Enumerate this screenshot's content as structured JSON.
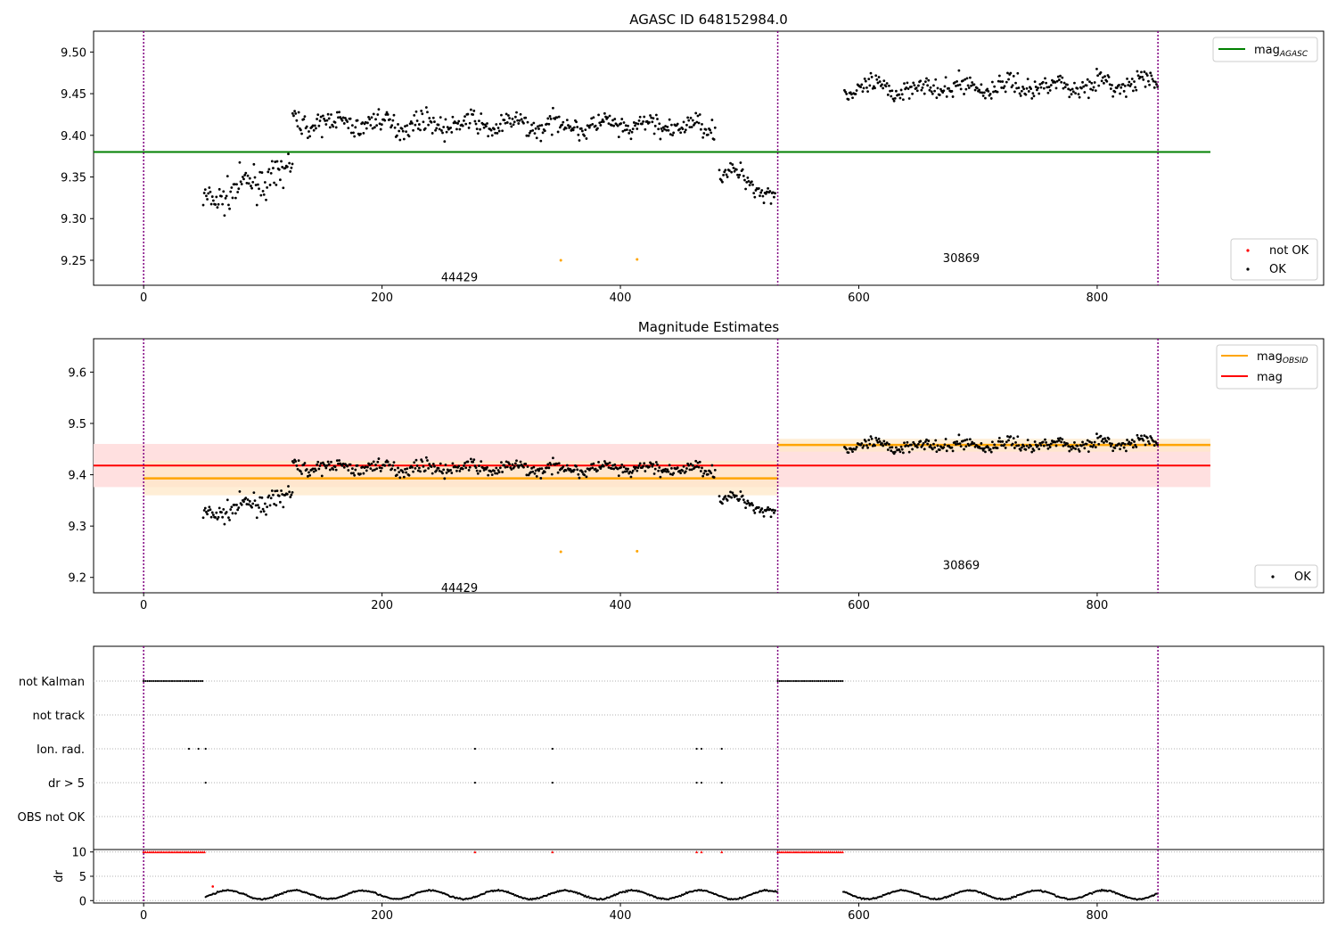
{
  "figure": {
    "panel1_title": "AGASC ID 648152984.0",
    "panel2_title": "Magnitude Estimates",
    "legend_agasc": "mag",
    "legend_agasc_sub": "AGASC",
    "legend_obsid": "mag",
    "legend_obsid_sub": "OBSID",
    "legend_mag": "mag",
    "legend_notok": "not OK",
    "legend_ok": "OK",
    "obs_labels": [
      "44429",
      "30869"
    ],
    "flag_labels": [
      "not Kalman",
      "not track",
      "Ion. rad.",
      "dr > 5",
      "OBS not OK"
    ],
    "dr_label": "dr",
    "colors": {
      "points": "#000000",
      "not_ok": "#ff0000",
      "agasc": "#008000",
      "obsid": "#ffa500",
      "mag": "#ff0000",
      "mag_band": "#ffe0e0",
      "obsid_band": "#ffe8c8",
      "obs_boundary": "#800080"
    }
  },
  "chart_data": [
    {
      "type": "scatter",
      "title": "AGASC ID 648152984.0",
      "xlim": [
        -42,
        990
      ],
      "ylim": [
        9.22,
        9.525
      ],
      "xticks": [
        0,
        200,
        400,
        600,
        800
      ],
      "yticks": [
        9.25,
        9.3,
        9.35,
        9.4,
        9.45,
        9.5
      ],
      "obs_boundaries": [
        0,
        532,
        851
      ],
      "obs_labels": [
        {
          "text": "44429",
          "x": 265,
          "y": 9.23
        },
        {
          "text": "30869",
          "x": 686,
          "y": 9.253
        }
      ],
      "agasc_mag": {
        "value": 9.38,
        "x": [
          -42,
          895
        ]
      },
      "not_ok_points": [
        {
          "x": 350,
          "y": 9.25
        },
        {
          "x": 414,
          "y": 9.251
        }
      ],
      "ok_segments": [
        {
          "x0": 50,
          "x1": 125,
          "y0": 9.32,
          "y1": 9.36,
          "scatter": 0.018
        },
        {
          "x0": 125,
          "x1": 480,
          "y0": 9.415,
          "y1": 9.41,
          "scatter": 0.012
        },
        {
          "x0": 483,
          "x1": 530,
          "y0": 9.36,
          "y1": 9.33,
          "scatter": 0.012
        },
        {
          "x0": 588,
          "x1": 851,
          "y0": 9.455,
          "y1": 9.462,
          "scatter": 0.012
        }
      ],
      "legend": [
        "mag AGASC",
        "not OK",
        "OK"
      ],
      "grid": false
    },
    {
      "type": "scatter",
      "title": "Magnitude Estimates",
      "xlim": [
        -42,
        990
      ],
      "ylim": [
        9.17,
        9.665
      ],
      "xticks": [
        0,
        200,
        400,
        600,
        800
      ],
      "yticks": [
        9.2,
        9.3,
        9.4,
        9.5,
        9.6
      ],
      "obs_boundaries": [
        0,
        532,
        851
      ],
      "obs_labels": [
        {
          "text": "44429",
          "x": 265,
          "y": 9.18
        },
        {
          "text": "30869",
          "x": 686,
          "y": 9.225
        }
      ],
      "mag": {
        "value": 9.418,
        "band": [
          9.376,
          9.46
        ],
        "x": [
          -42,
          895
        ]
      },
      "obsid_mag": [
        {
          "x": [
            0,
            532
          ],
          "value": 9.393,
          "band": [
            9.36,
            9.427
          ]
        },
        {
          "x": [
            532,
            895
          ],
          "value": 9.458,
          "band": [
            9.445,
            9.47
          ]
        }
      ],
      "not_ok_points": [
        {
          "x": 350,
          "y": 9.25
        },
        {
          "x": 414,
          "y": 9.251
        }
      ],
      "legend": [
        "mag OBSID",
        "mag",
        "OK"
      ],
      "grid": false
    },
    {
      "type": "scatter",
      "title": "",
      "xlim": [
        -42,
        990
      ],
      "categories": [
        "not Kalman",
        "not track",
        "Ion. rad.",
        "dr > 5",
        "OBS not OK"
      ],
      "flag_points": {
        "not Kalman": {
          "ranges": [
            [
              0,
              50
            ],
            [
              532,
              587
            ]
          ],
          "points": []
        },
        "not track": {
          "ranges": [],
          "points": []
        },
        "Ion. rad.": {
          "ranges": [],
          "points": [
            38,
            46,
            52,
            278,
            343,
            464,
            468,
            485
          ]
        },
        "dr > 5": {
          "ranges": [],
          "points": [
            52,
            278,
            343,
            464,
            468,
            485
          ]
        },
        "OBS not OK": {
          "ranges": [],
          "points": []
        }
      },
      "grid": true
    },
    {
      "type": "scatter",
      "title": "",
      "xlim": [
        -42,
        990
      ],
      "ylim": [
        -0.5,
        10.5
      ],
      "xticks": [
        0,
        200,
        400,
        600,
        800
      ],
      "yticks": [
        0,
        5,
        10
      ],
      "ylabel": "dr",
      "capped_at": 10,
      "high_dr_ranges": [
        [
          0,
          52
        ],
        [
          532,
          587
        ]
      ],
      "high_dr_points": [
        278,
        343,
        464,
        468,
        485
      ],
      "grid": true
    }
  ]
}
